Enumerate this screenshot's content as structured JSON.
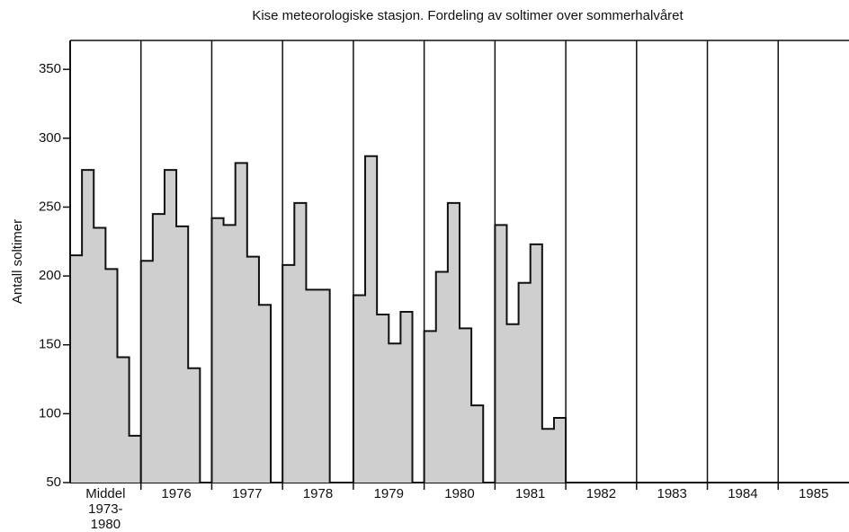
{
  "chart_data": {
    "type": "step-panels",
    "title": "Kise meteorologiske stasjon. Fordeling av soltimer over sommerhalvåret",
    "y_label": "Antall soltimer",
    "categories": [
      "Middel 1973-1980",
      "1976",
      "1977",
      "1978",
      "1979",
      "1980",
      "1981",
      "1982",
      "1983",
      "1984",
      "1985"
    ],
    "values": [
      [
        215,
        277,
        235,
        205,
        141,
        84
      ],
      [
        211,
        245,
        277,
        236,
        133,
        null
      ],
      [
        242,
        237,
        282,
        214,
        179,
        null
      ],
      [
        208,
        253,
        190,
        190,
        null,
        null
      ],
      [
        186,
        287,
        172,
        151,
        174,
        null
      ],
      [
        160,
        203,
        253,
        162,
        106,
        null
      ],
      [
        237,
        165,
        195,
        223,
        89,
        97
      ],
      [
        null,
        null,
        null,
        null,
        null,
        null
      ],
      [
        null,
        null,
        null,
        null,
        null,
        null
      ],
      [
        null,
        null,
        null,
        null,
        null,
        null
      ],
      [
        null,
        null,
        null,
        null,
        null,
        null
      ]
    ],
    "color": "#cfcfcf",
    "ylim": [
      50,
      371
    ],
    "yticks": [
      50,
      100,
      150,
      200,
      250,
      300,
      350
    ]
  }
}
